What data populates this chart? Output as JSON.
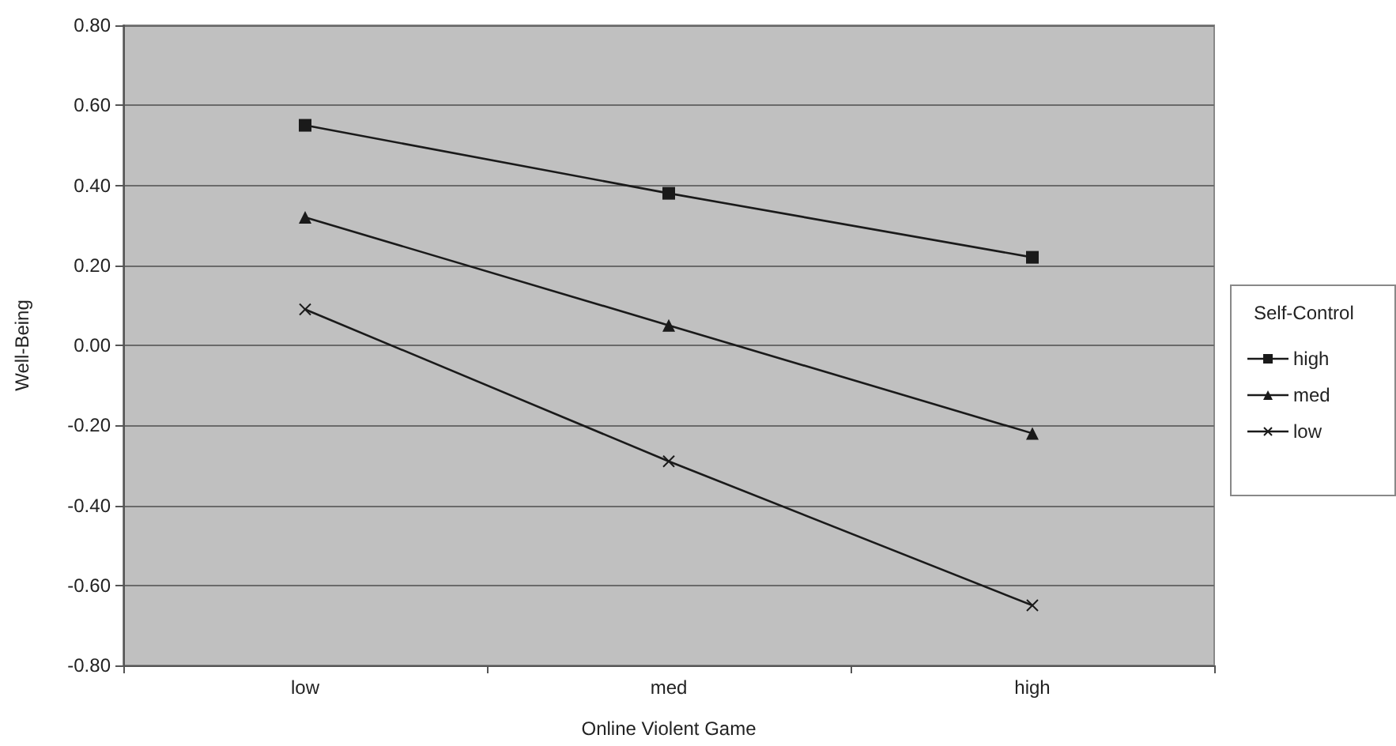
{
  "chart_data": {
    "type": "line",
    "xlabel": "Online Violent Game",
    "ylabel": "Well-Being",
    "legend_title": "Self-Control",
    "categories": [
      "low",
      "med",
      "high"
    ],
    "series": [
      {
        "name": "high",
        "color": "#1a1a1a",
        "marker": "square",
        "values": [
          0.55,
          0.38,
          0.22
        ]
      },
      {
        "name": "med",
        "color": "#1a1a1a",
        "marker": "triangle",
        "values": [
          0.32,
          0.05,
          -0.22
        ]
      },
      {
        "name": "low",
        "color": "#1a1a1a",
        "marker": "cross",
        "values": [
          0.09,
          -0.29,
          -0.65
        ]
      }
    ],
    "ylim": [
      -0.8,
      0.8
    ],
    "yticks": [
      {
        "value": -0.8,
        "label": "-0.80"
      },
      {
        "value": -0.6,
        "label": "-0.60"
      },
      {
        "value": -0.4,
        "label": "-0.40"
      },
      {
        "value": -0.2,
        "label": "-0.20"
      },
      {
        "value": 0,
        "label": "0.00"
      },
      {
        "value": 0.2,
        "label": "0.20"
      },
      {
        "value": 0.4,
        "label": "0.40"
      },
      {
        "value": 0.6,
        "label": "0.60"
      },
      {
        "value": 0.8,
        "label": "0.80"
      }
    ],
    "grid": "y",
    "legend": "right",
    "line_style": "solid"
  }
}
